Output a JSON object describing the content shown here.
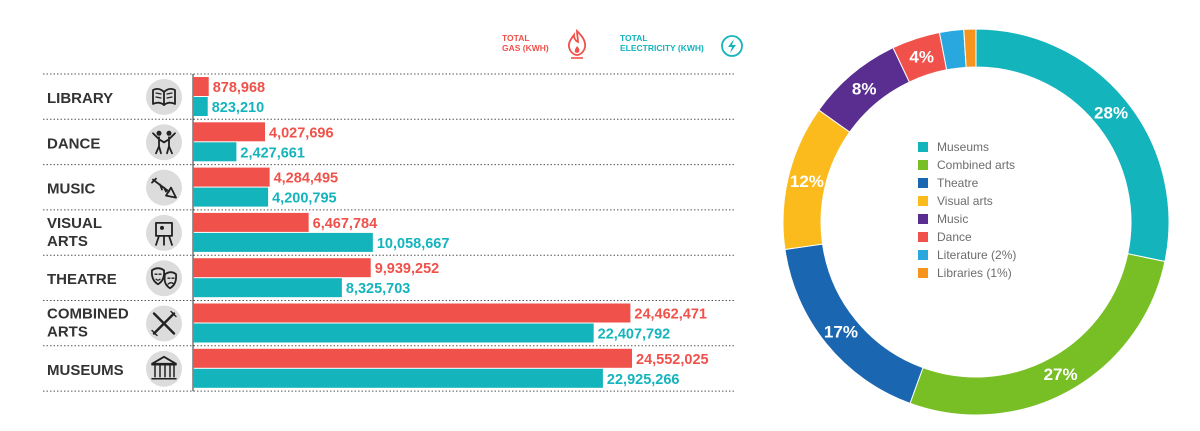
{
  "chart_data": [
    {
      "type": "bar",
      "orientation": "horizontal",
      "categories": [
        "LIBRARY",
        "DANCE",
        "MUSIC",
        "VISUAL ARTS",
        "THEATRE",
        "COMBINED ARTS",
        "MUSEUMS"
      ],
      "icons": [
        "book-icon",
        "dance-icon",
        "trumpet-icon",
        "easel-icon",
        "theatre-masks-icon",
        "paintbrush-icon",
        "museum-icon"
      ],
      "series": [
        {
          "name": "TOTAL GAS (KWH)",
          "color": "#f0514a",
          "values": [
            878968,
            4027696,
            4284495,
            6467784,
            9939252,
            24462471,
            24552025
          ],
          "labels": [
            "878,968",
            "4,027,696",
            "4,284,495",
            "6,467,784",
            "9,939,252",
            "24,462,471",
            "24,552,025"
          ]
        },
        {
          "name": "TOTAL ELECTRICITY (KWH)",
          "color": "#14b4bd",
          "values": [
            823210,
            2427661,
            4200795,
            10058667,
            8325703,
            22407792,
            22925266
          ],
          "labels": [
            "823,210",
            "2,427,661",
            "4,200,795",
            "10,058,667",
            "8,325,703",
            "22,407,792",
            "22,925,266"
          ]
        }
      ],
      "legend": {
        "position": "top-right",
        "gas": {
          "line1": "TOTAL",
          "line2": "GAS (KWH)",
          "icon": "flame-icon",
          "color": "#f0514a"
        },
        "electricity": {
          "line1": "TOTAL",
          "line2": "ELECTRICITY (KWH)",
          "icon": "lightning-icon",
          "color": "#14b4bd"
        }
      },
      "xlim": [
        0,
        24552025
      ],
      "grid": false
    },
    {
      "type": "pie",
      "donut": true,
      "slices": [
        {
          "label": "Museums",
          "value": 28,
          "display": "28%",
          "color": "#14b4bd"
        },
        {
          "label": "Combined arts",
          "value": 27,
          "display": "27%",
          "color": "#77bf25"
        },
        {
          "label": "Theatre",
          "value": 17,
          "display": "17%",
          "color": "#1a66b0"
        },
        {
          "label": "Visual arts",
          "value": 12,
          "display": "12%",
          "color": "#fbbb1c"
        },
        {
          "label": "Music",
          "value": 8,
          "display": "8%",
          "color": "#5a2d91"
        },
        {
          "label": "Dance",
          "value": 4,
          "display": "4%",
          "color": "#f0514a"
        },
        {
          "label": "Literature (2%)",
          "value": 2,
          "display": "",
          "color": "#29a8e0"
        },
        {
          "label": "Libraries (1%)",
          "value": 1,
          "display": "",
          "color": "#f7941d"
        }
      ],
      "legend_position": "center"
    }
  ]
}
